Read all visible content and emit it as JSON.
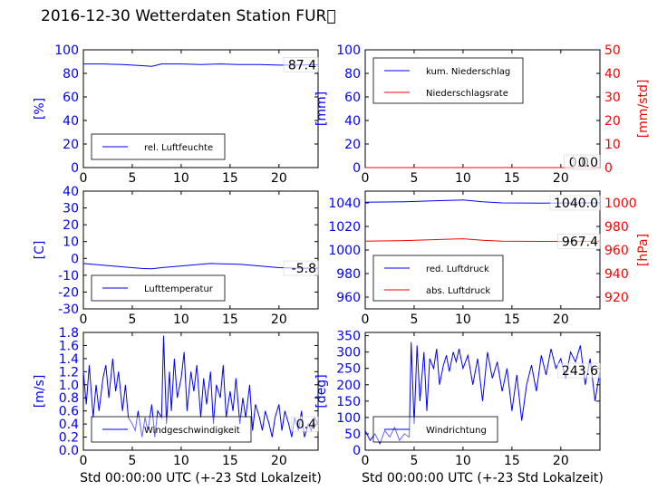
{
  "figure_title": "2016-12-30 Wetterdaten Station FUR\u0000",
  "colors": {
    "left": "#0000ff",
    "right": "#ff0000",
    "axis": "#000000"
  },
  "chart_data": [
    {
      "id": "humidity",
      "type": "line",
      "xlim": [
        0,
        24
      ],
      "xticks": [
        0,
        5,
        10,
        15,
        20
      ],
      "ylim": [
        0,
        100
      ],
      "yticks": [
        0,
        20,
        40,
        60,
        80,
        100
      ],
      "ylabel": "[%]",
      "xlabel": "",
      "legend": {
        "position": "lower-left",
        "entries": [
          "rel. Luftfeuchte"
        ]
      },
      "value_label": "87.4",
      "series": [
        {
          "name": "rel. Luftfeuchte",
          "axis": "left",
          "x": [
            0,
            2,
            4,
            6,
            7,
            8,
            10,
            12,
            14,
            16,
            18,
            20,
            22,
            24
          ],
          "y": [
            88,
            88,
            87.5,
            86.5,
            86,
            88,
            88,
            87.5,
            88,
            87.5,
            87.5,
            87,
            87,
            87.4
          ]
        }
      ]
    },
    {
      "id": "precip",
      "type": "line",
      "xlim": [
        0,
        24
      ],
      "xticks": [
        0,
        5,
        10,
        15,
        20
      ],
      "ylim": [
        0,
        100
      ],
      "yticks": [
        0,
        20,
        40,
        60,
        80,
        100
      ],
      "ylabel": "[mm]",
      "ylim_right": [
        0,
        50
      ],
      "yticks_right": [
        0,
        10,
        20,
        30,
        40,
        50
      ],
      "ylabel_right": "[mm/std]",
      "xlabel": "",
      "legend": {
        "position": "upper-left",
        "entries": [
          "kum. Niederschlag",
          "Niederschlagsrate"
        ]
      },
      "value_labels": [
        "0.0",
        "0.0"
      ],
      "series": [
        {
          "name": "kum. Niederschlag",
          "axis": "left",
          "x": [
            0,
            24
          ],
          "y": [
            0,
            0
          ]
        },
        {
          "name": "Niederschlagsrate",
          "axis": "right",
          "x": [
            0,
            24
          ],
          "y": [
            0,
            0
          ]
        }
      ]
    },
    {
      "id": "temp",
      "type": "line",
      "xlim": [
        0,
        24
      ],
      "xticks": [
        0,
        5,
        10,
        15,
        20
      ],
      "ylim": [
        -30,
        40
      ],
      "yticks": [
        -30,
        -20,
        -10,
        0,
        10,
        20,
        30,
        40
      ],
      "ylabel": "[C]",
      "xlabel": "",
      "legend": {
        "position": "lower-left",
        "entries": [
          "Lufttemperatur"
        ]
      },
      "value_label": "-5.8",
      "series": [
        {
          "name": "Lufttemperatur",
          "axis": "left",
          "x": [
            0,
            2,
            4,
            6,
            7,
            8,
            10,
            12,
            13,
            14,
            16,
            18,
            20,
            22,
            24
          ],
          "y": [
            -3,
            -4,
            -5,
            -6,
            -6.2,
            -5.5,
            -4.5,
            -3.5,
            -3,
            -3.2,
            -3.5,
            -4.5,
            -5.5,
            -5.8,
            -5.8
          ]
        }
      ]
    },
    {
      "id": "pressure",
      "type": "line",
      "xlim": [
        0,
        24
      ],
      "xticks": [
        0,
        5,
        10,
        15,
        20
      ],
      "ylim": [
        950,
        1050
      ],
      "yticks": [
        960,
        980,
        1000,
        1020,
        1040
      ],
      "ylabel": "",
      "ylim_right": [
        910,
        1010
      ],
      "yticks_right": [
        920,
        940,
        960,
        980,
        1000
      ],
      "ylabel_right": "[hPa]",
      "xlabel": "",
      "legend": {
        "position": "lower-left",
        "entries": [
          "red. Luftdruck",
          "abs. Luftdruck"
        ]
      },
      "value_labels": [
        "1040.0",
        "967.4"
      ],
      "series": [
        {
          "name": "red. Luftdruck",
          "axis": "left",
          "x": [
            0,
            4,
            8,
            10,
            12,
            14,
            18,
            22,
            24
          ],
          "y": [
            1040.5,
            1041,
            1042,
            1042.5,
            1041,
            1040,
            1039.8,
            1040,
            1040
          ]
        },
        {
          "name": "abs. Luftdruck",
          "axis": "right",
          "x": [
            0,
            4,
            8,
            10,
            12,
            14,
            18,
            22,
            24
          ],
          "y": [
            967.5,
            968,
            969,
            969.5,
            968.3,
            967.5,
            967.3,
            967.4,
            967.4
          ]
        }
      ]
    },
    {
      "id": "windspeed",
      "type": "line",
      "xlim": [
        0,
        24
      ],
      "xticks": [
        0,
        5,
        10,
        15,
        20
      ],
      "ylim": [
        0,
        1.8
      ],
      "yticks": [
        0.0,
        0.2,
        0.4,
        0.6,
        0.8,
        1.0,
        1.2,
        1.4,
        1.6,
        1.8
      ],
      "ylabel": "[m/s]",
      "xlabel": "Std 00:00:00 UTC (+-23 Std Lokalzeit)",
      "legend": {
        "position": "lower-left",
        "entries": [
          "Windgeschwindigkeit"
        ]
      },
      "value_label": "0.4",
      "series": [
        {
          "name": "Windgeschwindigkeit",
          "axis": "left",
          "x": [
            0,
            0.3,
            0.6,
            1,
            1.3,
            1.6,
            2,
            2.3,
            2.6,
            3,
            3.3,
            3.6,
            4,
            4.3,
            4.6,
            5,
            5.3,
            5.6,
            6,
            6.3,
            6.6,
            7,
            7.3,
            7.6,
            8,
            8.2,
            8.5,
            8.8,
            9,
            9.3,
            9.6,
            10,
            10.3,
            10.6,
            11,
            11.3,
            11.6,
            12,
            12.3,
            12.6,
            13,
            13.3,
            13.6,
            14,
            14.3,
            14.6,
            15,
            15.3,
            15.6,
            16,
            16.3,
            16.6,
            17,
            17.3,
            17.6,
            18,
            18.3,
            18.6,
            19,
            19.3,
            19.6,
            20,
            20.3,
            20.6,
            21,
            21.3,
            21.6,
            22,
            22.3,
            22.6,
            23,
            23.3,
            23.6,
            24
          ],
          "y": [
            1.2,
            0.7,
            1.3,
            0.5,
            1.0,
            0.6,
            1.1,
            1.3,
            0.8,
            1.4,
            0.9,
            1.2,
            0.6,
            1.0,
            0.5,
            0.4,
            0.3,
            0.6,
            0.2,
            0.5,
            0.3,
            0.7,
            0.2,
            0.6,
            0.5,
            1.75,
            0.4,
            1.2,
            0.6,
            1.4,
            0.8,
            1.1,
            1.5,
            0.6,
            1.2,
            0.9,
            1.3,
            0.5,
            1.1,
            0.7,
            1.2,
            0.4,
            1.0,
            0.8,
            1.3,
            0.5,
            0.9,
            0.6,
            1.1,
            0.4,
            0.8,
            0.5,
            1.0,
            0.3,
            0.7,
            0.5,
            0.3,
            0.6,
            0.4,
            0.2,
            0.5,
            0.7,
            0.3,
            0.6,
            0.4,
            0.2,
            0.5,
            0.3,
            0.6,
            0.2,
            0.4,
            0.3,
            0.5,
            0.4
          ]
        }
      ]
    },
    {
      "id": "winddir",
      "type": "line",
      "xlim": [
        0,
        24
      ],
      "xticks": [
        0,
        5,
        10,
        15,
        20
      ],
      "ylim": [
        0,
        360
      ],
      "yticks": [
        0,
        50,
        100,
        150,
        200,
        250,
        300,
        350
      ],
      "ylabel": "[deg]",
      "xlabel": "Std 00:00:00 UTC (+-23 Std Lokalzeit)",
      "legend": {
        "position": "lower-left",
        "entries": [
          "Windrichtung"
        ]
      },
      "value_label": "243.6",
      "series": [
        {
          "name": "Windrichtung",
          "axis": "left",
          "x": [
            0,
            0.5,
            1,
            1.5,
            2,
            2.5,
            3,
            3.5,
            4,
            4.5,
            4.7,
            5,
            5.3,
            5.6,
            6,
            6.3,
            6.6,
            7,
            7.3,
            7.6,
            8,
            8.3,
            8.6,
            9,
            9.3,
            9.6,
            10,
            10.5,
            11,
            11.5,
            12,
            12.5,
            13,
            13.5,
            14,
            14.5,
            15,
            15.5,
            16,
            16.5,
            17,
            17.5,
            18,
            18.5,
            19,
            19.5,
            20,
            20.5,
            21,
            21.5,
            22,
            22.5,
            23,
            23.5,
            24
          ],
          "y": [
            60,
            30,
            50,
            20,
            60,
            40,
            70,
            30,
            50,
            40,
            330,
            80,
            320,
            150,
            300,
            120,
            280,
            250,
            310,
            200,
            260,
            290,
            240,
            300,
            270,
            310,
            250,
            290,
            200,
            280,
            150,
            300,
            220,
            270,
            180,
            250,
            120,
            230,
            90,
            200,
            260,
            180,
            290,
            230,
            310,
            250,
            280,
            220,
            300,
            270,
            320,
            200,
            280,
            150,
            243.6
          ]
        }
      ]
    }
  ]
}
